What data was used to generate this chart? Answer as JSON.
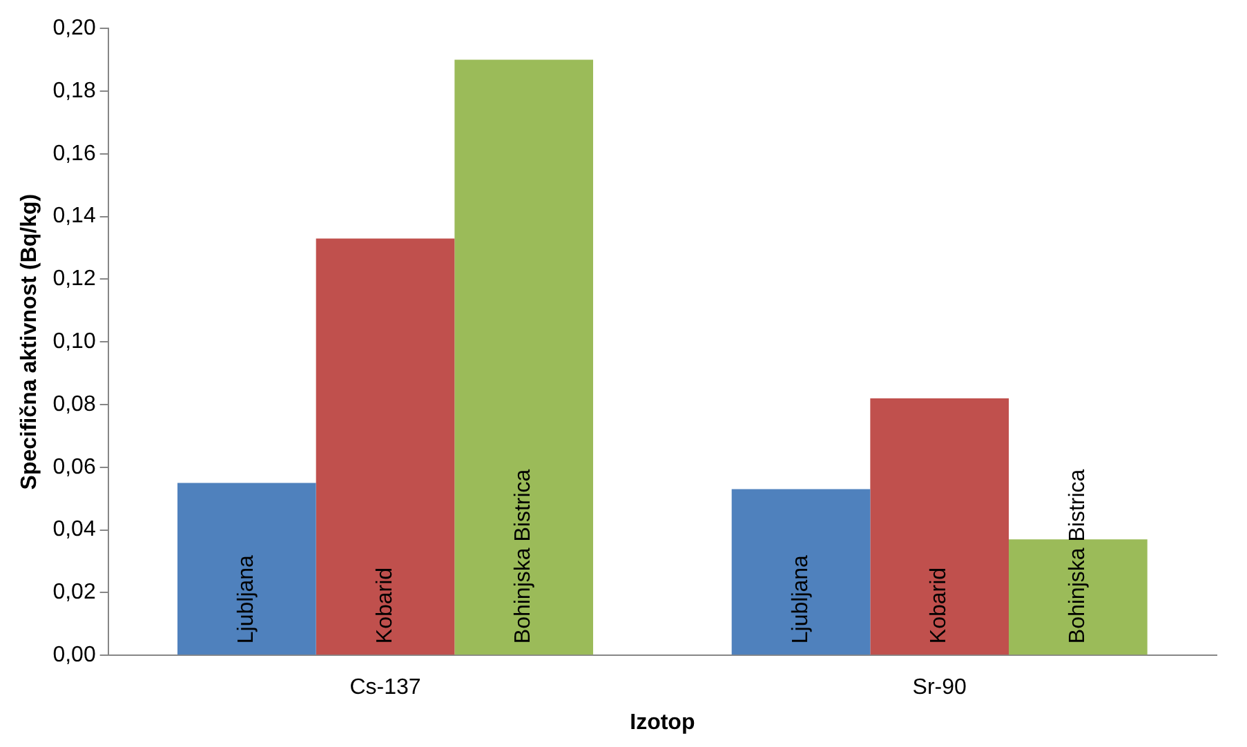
{
  "chart_data": {
    "type": "bar",
    "xlabel": "Izotop",
    "ylabel": "Specifična aktivnost (Bq/kg)",
    "categories": [
      "Cs-137",
      "Sr-90"
    ],
    "series": [
      {
        "name": "Ljubljana",
        "color": "#4f81bd",
        "values": [
          0.055,
          0.053
        ]
      },
      {
        "name": "Kobarid",
        "color": "#c0504d",
        "values": [
          0.133,
          0.082
        ]
      },
      {
        "name": "Bohinjska Bistrica",
        "color": "#9bbb59",
        "values": [
          0.19,
          0.037
        ]
      }
    ],
    "ylim": [
      0,
      0.2
    ],
    "yticks": [
      {
        "value": 0,
        "label": "0,00"
      },
      {
        "value": 0.02,
        "label": "0,02"
      },
      {
        "value": 0.04,
        "label": "0,04"
      },
      {
        "value": 0.06,
        "label": "0,06"
      },
      {
        "value": 0.08,
        "label": "0,08"
      },
      {
        "value": 0.1,
        "label": "0,10"
      },
      {
        "value": 0.12,
        "label": "0,12"
      },
      {
        "value": 0.14,
        "label": "0,14"
      },
      {
        "value": 0.16,
        "label": "0,16"
      },
      {
        "value": 0.18,
        "label": "0,18"
      },
      {
        "value": 0.2,
        "label": "0,20"
      }
    ],
    "grid": false,
    "legend": false
  }
}
